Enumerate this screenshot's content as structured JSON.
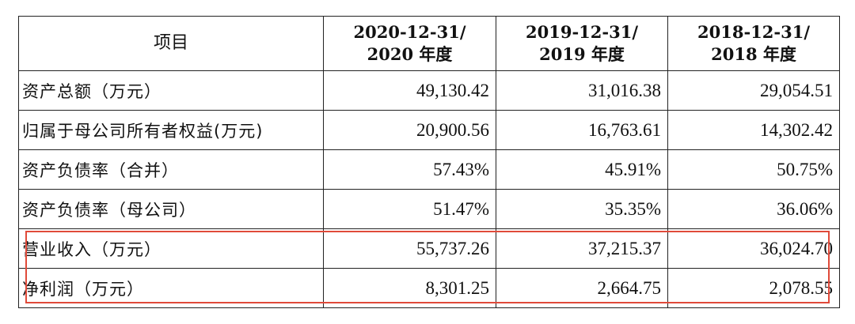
{
  "table": {
    "header": {
      "item": "项目",
      "columns": [
        {
          "line1": "2020-12-31/",
          "line2": "2020 年度"
        },
        {
          "line1": "2019-12-31/",
          "line2": "2019 年度"
        },
        {
          "line1": "2018-12-31/",
          "line2": "2018 年度"
        }
      ]
    },
    "rows": [
      {
        "label": "资产总额（万元）",
        "values": [
          "49,130.42",
          "31,016.38",
          "29,054.51"
        ]
      },
      {
        "label": "归属于母公司所有者权益(万元)",
        "values": [
          "20,900.56",
          "16,763.61",
          "14,302.42"
        ]
      },
      {
        "label": "资产负债率（合并）",
        "values": [
          "57.43%",
          "45.91%",
          "50.75%"
        ]
      },
      {
        "label": "资产负债率（母公司）",
        "values": [
          "51.47%",
          "35.35%",
          "36.06%"
        ]
      },
      {
        "label": "营业收入（万元）",
        "values": [
          "55,737.26",
          "37,215.37",
          "36,024.70"
        ]
      },
      {
        "label": "净利润（万元）",
        "values": [
          "8,301.25",
          "2,664.75",
          "2,078.55"
        ]
      }
    ]
  },
  "highlight": {
    "color": "#e04a3a"
  }
}
